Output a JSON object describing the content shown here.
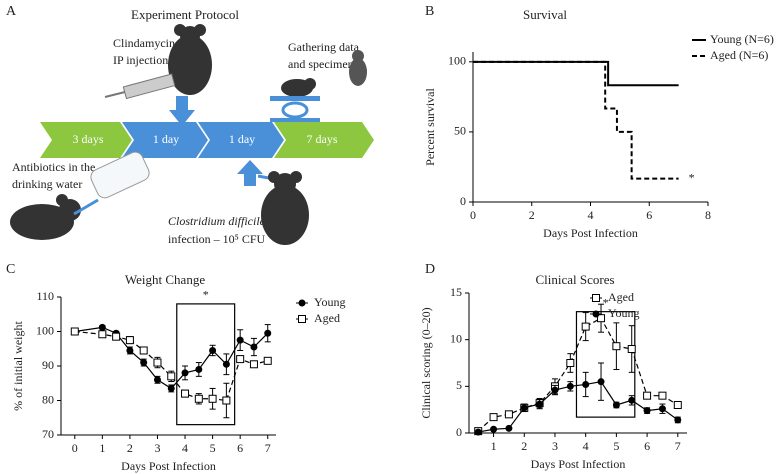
{
  "panel_labels": [
    "A",
    "B",
    "C",
    "D"
  ],
  "protocol": {
    "title": "Experiment Protocol",
    "steps": [
      "3 days",
      "1 day",
      "1 day",
      "7 days"
    ],
    "injection": [
      "Clindamycin",
      "IP injection"
    ],
    "gathering": [
      "Gathering data",
      "and specimens"
    ],
    "antibiotics": [
      "Antibiotics in the",
      "drinking water"
    ],
    "infection": [
      "Clostridium difficile",
      "infection – 10⁵ CFU"
    ]
  },
  "chart_data": [
    {
      "type": "step",
      "title": "Survival",
      "x_label": "Days Post Infection",
      "y_label": "Percent survival",
      "xlim": [
        0,
        8
      ],
      "xticks": [
        0,
        2,
        4,
        6,
        8
      ],
      "ylim": [
        0,
        107
      ],
      "yticks": [
        0,
        50,
        100
      ],
      "annotation": "*",
      "series": [
        {
          "name": "Young (N=6)",
          "color": "#000000",
          "line_style": "solid",
          "x": [
            0,
            4.6,
            7
          ],
          "values": [
            100,
            83.3,
            83.3
          ]
        },
        {
          "name": "Aged (N=6)",
          "color": "#000000",
          "line_style": "dashed",
          "x": [
            0,
            4.5,
            4.9,
            5.4,
            7
          ],
          "values": [
            100,
            66.7,
            50,
            16.7,
            16.7
          ]
        }
      ]
    },
    {
      "type": "line",
      "title": "Weight Change",
      "x_label": "Days Post Infection",
      "y_label": "% of initial weight",
      "xlim": [
        -0.5,
        7.3
      ],
      "xticks": [
        0,
        1,
        2,
        3,
        4,
        5,
        6,
        7
      ],
      "ylim": [
        70,
        110
      ],
      "yticks": [
        70,
        80,
        90,
        100,
        110
      ],
      "annotation": "*",
      "highlight_box": {
        "x": [
          3.7,
          5.8
        ],
        "y": [
          73,
          108
        ]
      },
      "series": [
        {
          "name": "Young",
          "color": "#000000",
          "marker": "circle",
          "line_style": "solid",
          "x": [
            0,
            1,
            1.5,
            2,
            2.5,
            3,
            3.5,
            4,
            4.5,
            5,
            5.5,
            6,
            6.5,
            7
          ],
          "values": [
            100,
            101.2,
            99.5,
            94.5,
            91,
            86,
            83.5,
            88,
            89,
            94.5,
            90.5,
            97.5,
            95.5,
            99.5
          ],
          "errors": [
            0,
            0.5,
            0.5,
            1,
            1,
            1,
            1,
            2,
            2,
            1.5,
            3,
            3,
            2.5,
            2.5
          ]
        },
        {
          "name": "Aged",
          "color": "#000000",
          "marker": "square",
          "line_style": "dashed",
          "x": [
            0,
            1,
            1.5,
            2,
            2.5,
            3,
            3.5,
            4,
            4.5,
            5,
            5.5,
            6,
            6.5,
            7
          ],
          "values": [
            100,
            99.2,
            98.5,
            97.5,
            94.5,
            91,
            87,
            82,
            80.5,
            80.5,
            80,
            92,
            90.5,
            91.5
          ],
          "errors": [
            0,
            0.5,
            0.5,
            1,
            1,
            1.5,
            1.5,
            1,
            1.5,
            3,
            5,
            0.5,
            0.5,
            0.5
          ]
        }
      ]
    },
    {
      "type": "line",
      "title": "Clinical Scores",
      "x_label": "Days Post Infection",
      "y_label": "Clinical scoring (0–20)",
      "xlim": [
        0.2,
        7.3
      ],
      "xticks": [
        1,
        2,
        3,
        4,
        5,
        6,
        7
      ],
      "ylim": [
        0,
        15
      ],
      "yticks": [
        0,
        5,
        10,
        15
      ],
      "annotation": "*",
      "highlight_box": {
        "x": [
          3.7,
          5.6
        ],
        "y": [
          1.7,
          13
        ]
      },
      "series": [
        {
          "name": "Aged",
          "color": "#000000",
          "marker": "square",
          "line_style": "dashed",
          "x": [
            0.5,
            1,
            1.5,
            2,
            2.5,
            3,
            3.5,
            4,
            4.5,
            5,
            5.5,
            6,
            6.5,
            7
          ],
          "values": [
            0.2,
            1.7,
            2,
            2.7,
            3.2,
            5,
            7.5,
            11.4,
            12.3,
            9.3,
            9,
            4,
            4,
            3
          ],
          "errors": [
            0,
            0.3,
            0.3,
            0.4,
            0.5,
            0.8,
            1,
            1.5,
            1.5,
            2.5,
            2.5,
            0.3,
            0.3,
            0.2
          ]
        },
        {
          "name": "Young",
          "color": "#000000",
          "marker": "circle",
          "line_style": "solid",
          "x": [
            0.5,
            1,
            1.5,
            2,
            2.5,
            3,
            3.5,
            4,
            4.5,
            5,
            5.5,
            6,
            6.5,
            7
          ],
          "values": [
            0.1,
            0.4,
            0.5,
            2.7,
            3.1,
            4.6,
            5,
            5.2,
            5.5,
            3,
            3.5,
            2.4,
            2.6,
            1.4
          ],
          "errors": [
            0,
            0.1,
            0.1,
            0.4,
            0.5,
            0.5,
            0.5,
            1.3,
            2,
            0.3,
            0.5,
            0.3,
            0.5,
            0.3
          ]
        }
      ]
    }
  ]
}
